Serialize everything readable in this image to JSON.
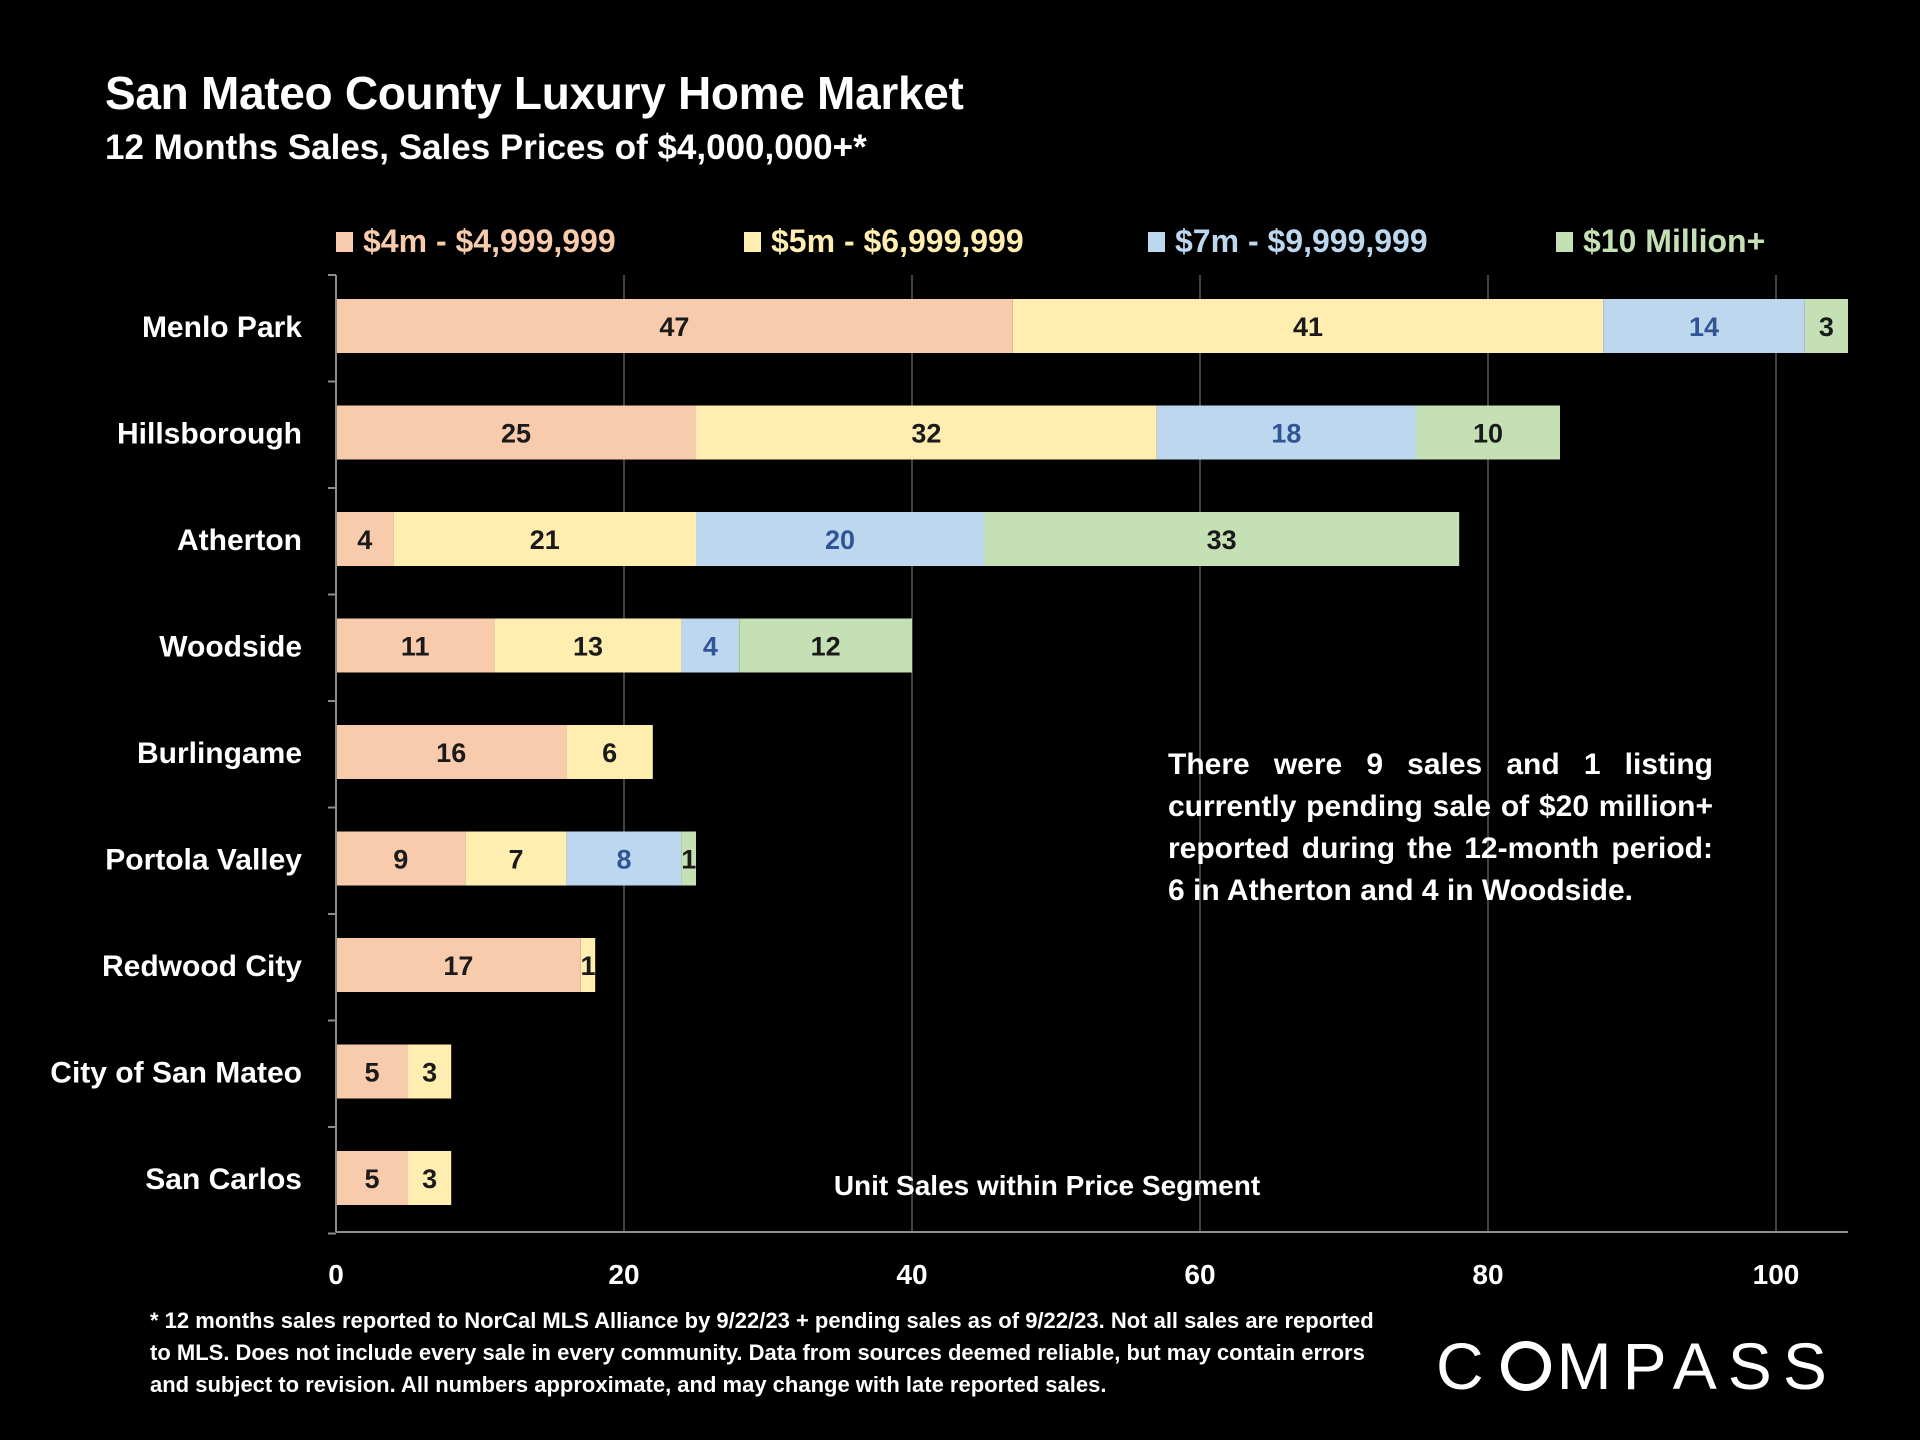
{
  "colors": {
    "background": "#000000",
    "text": "#ffffff",
    "grid": "#595959",
    "axis": "#8c8c8c",
    "label_dark": "#1a1a1a",
    "label_blue": "#2f5597"
  },
  "logo": {
    "part1": "C",
    "part2": "MPASS"
  },
  "annotation": "There were 9 sales and 1 listing currently pending sale of $20 million+ reported during the 12-month period: 6 in Atherton and 4 in Woodside.",
  "footnote": "* 12 months sales reported to NorCal MLS Alliance by 9/22/23 + pending sales as of 9/22/23. Not all sales are reported to MLS. Does not include every sale in every community. Data from  sources deemed reliable, but may contain errors and subject to revision. All numbers approximate, and may change with late reported sales.",
  "chart_data": {
    "type": "bar",
    "orientation": "horizontal",
    "stacked": true,
    "title": "San Mateo County Luxury Home Market",
    "subtitle": "12 Months Sales, Sales Prices of $4,000,000+*",
    "xlabel": "Unit Sales within Price Segment",
    "ylabel": "",
    "xlim": [
      0,
      105
    ],
    "xticks": [
      0,
      20,
      40,
      60,
      80,
      100
    ],
    "grid": true,
    "legend_position": "top",
    "categories": [
      "Menlo Park",
      "Hillsborough",
      "Atherton",
      "Woodside",
      "Burlingame",
      "Portola Valley",
      "Redwood City",
      "City of San Mateo",
      "San Carlos"
    ],
    "series": [
      {
        "name": "$4m - $4,999,999",
        "color": "#f8cbad",
        "legend_text_color": "#f8cbad",
        "values": [
          47,
          25,
          4,
          11,
          16,
          9,
          17,
          5,
          5
        ]
      },
      {
        "name": "$5m - $6,999,999",
        "color": "#ffeeb0",
        "legend_text_color": "#ffeeb0",
        "values": [
          41,
          32,
          21,
          13,
          6,
          7,
          1,
          3,
          3
        ]
      },
      {
        "name": "$7m - $9,999,999",
        "color": "#bdd7ee",
        "legend_text_color": "#bdd7ee",
        "values": [
          14,
          18,
          20,
          4,
          0,
          8,
          0,
          0,
          0
        ]
      },
      {
        "name": "$10 Million+",
        "color": "#c5e0b4",
        "legend_text_color": "#c5e0b4",
        "values": [
          3,
          10,
          33,
          12,
          0,
          1,
          0,
          0,
          0
        ]
      }
    ]
  }
}
